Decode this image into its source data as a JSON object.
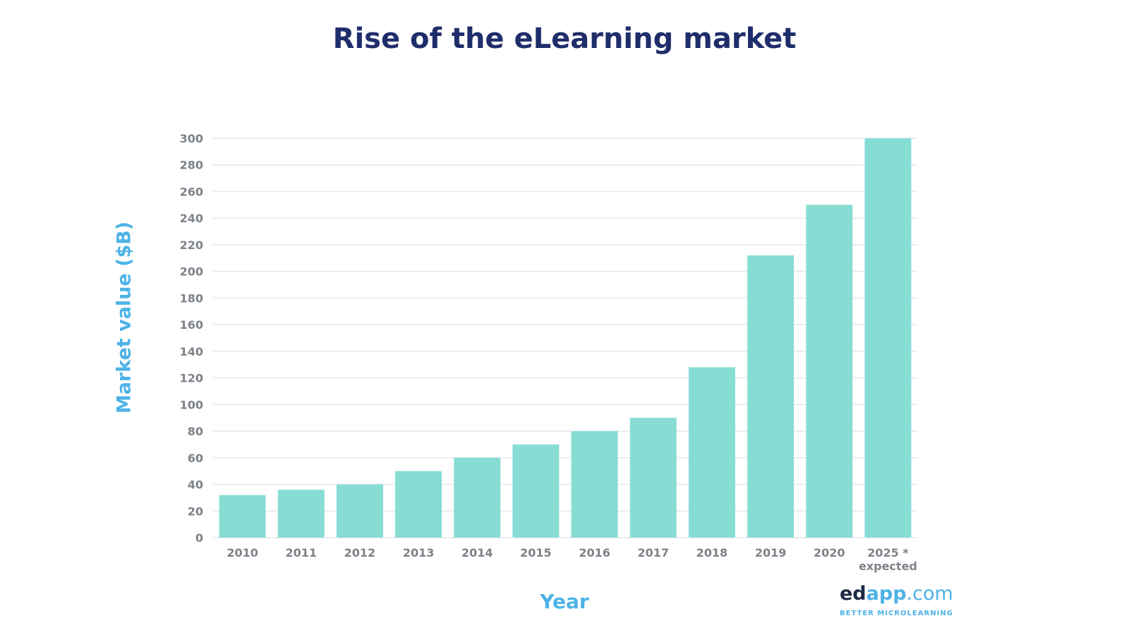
{
  "chart_data": {
    "type": "bar",
    "title": "Rise of the eLearning market",
    "xlabel": "Year",
    "ylabel": "Market value ($B)",
    "categories": [
      "2010",
      "2011",
      "2012",
      "2013",
      "2014",
      "2015",
      "2016",
      "2017",
      "2018",
      "2019",
      "2020",
      "2025 *"
    ],
    "category_notes": {
      "2025 *": "expected"
    },
    "values": [
      32,
      36,
      40,
      50,
      60,
      70,
      80,
      90,
      128,
      212,
      250,
      300
    ],
    "ylim": [
      0,
      300
    ],
    "yticks": [
      0,
      20,
      40,
      60,
      80,
      100,
      120,
      140,
      160,
      180,
      200,
      220,
      240,
      260,
      280,
      300
    ],
    "grid": true,
    "colors": {
      "bar": "#87ddd4",
      "title": "#1f2d6b",
      "axis_label": "#4db3e6",
      "tick": "#7d828a",
      "grid": "#e3e8ef"
    }
  },
  "branding": {
    "logo_ed": "ed",
    "logo_app": "app",
    "logo_com": ".com",
    "tagline": "BETTER MICROLEARNING"
  }
}
